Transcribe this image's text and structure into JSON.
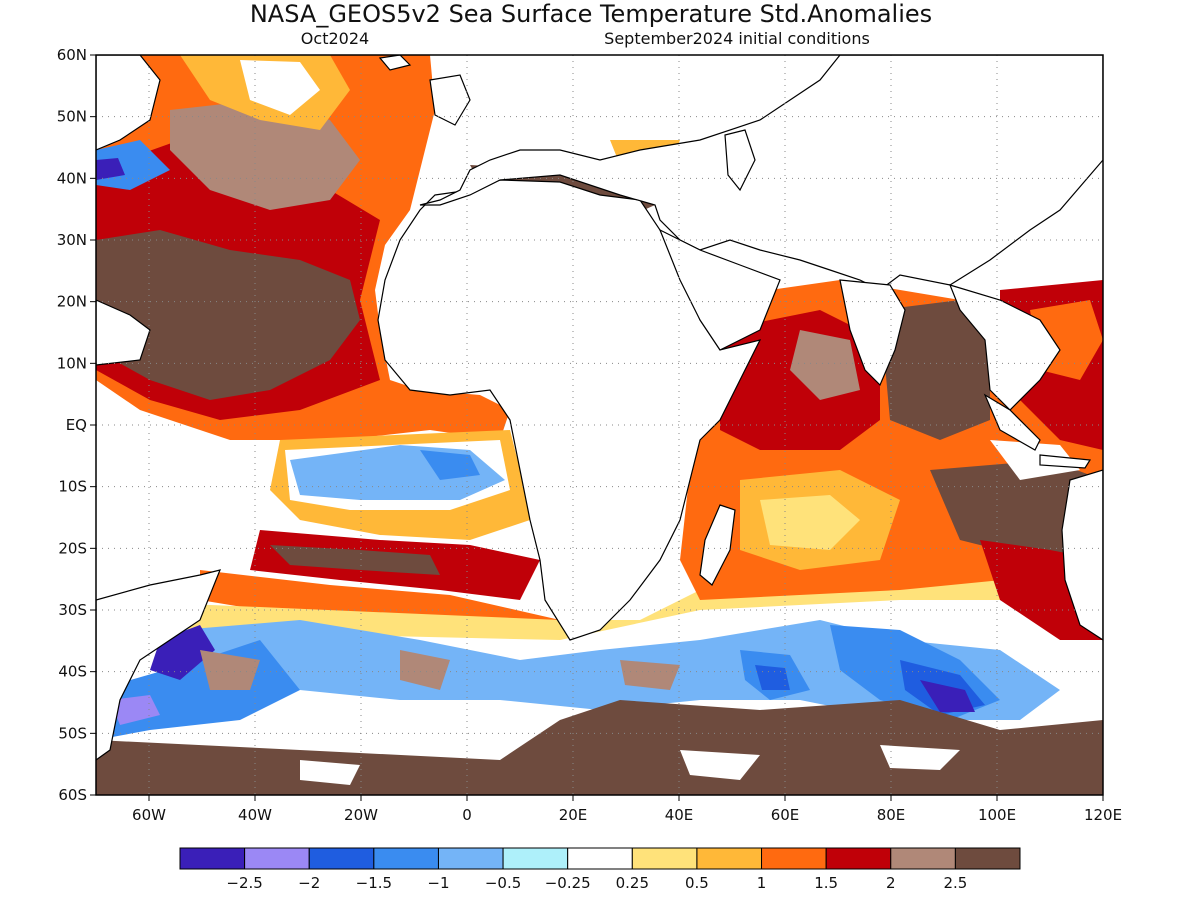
{
  "header": {
    "title": "NASA_GEOS5v2 Sea Surface Temperature Std.Anomalies",
    "valid_month": "Oct2024",
    "initial_conditions": "September2024 initial conditions"
  },
  "map": {
    "lon_range": [
      -70,
      120
    ],
    "lat_range": [
      -60,
      60
    ],
    "lat_ticks": [
      {
        "value": 60,
        "label": "60N"
      },
      {
        "value": 50,
        "label": "50N"
      },
      {
        "value": 40,
        "label": "40N"
      },
      {
        "value": 30,
        "label": "30N"
      },
      {
        "value": 20,
        "label": "20N"
      },
      {
        "value": 10,
        "label": "10N"
      },
      {
        "value": 0,
        "label": "EQ"
      },
      {
        "value": -10,
        "label": "10S"
      },
      {
        "value": -20,
        "label": "20S"
      },
      {
        "value": -30,
        "label": "30S"
      },
      {
        "value": -40,
        "label": "40S"
      },
      {
        "value": -50,
        "label": "50S"
      },
      {
        "value": -60,
        "label": "60S"
      }
    ],
    "lon_ticks": [
      {
        "value": -60,
        "label": "60W"
      },
      {
        "value": -40,
        "label": "40W"
      },
      {
        "value": -20,
        "label": "20W"
      },
      {
        "value": 0,
        "label": "0"
      },
      {
        "value": 20,
        "label": "20E"
      },
      {
        "value": 40,
        "label": "40E"
      },
      {
        "value": 60,
        "label": "60E"
      },
      {
        "value": 80,
        "label": "80E"
      },
      {
        "value": 100,
        "label": "100E"
      },
      {
        "value": 120,
        "label": "120E"
      }
    ],
    "grid": true
  },
  "colorbar": {
    "colors": [
      "#3a1fb8",
      "#9b88f5",
      "#1f5de0",
      "#3a8cf0",
      "#74b4f7",
      "#aef0fa",
      "#ffffff",
      "#ffe27a",
      "#ffb838",
      "#ff6a10",
      "#c00008",
      "#b08878",
      "#6e4b3e"
    ],
    "labels": [
      "-2.5",
      "-2",
      "-1.5",
      "-1",
      "-0.5",
      "-0.25",
      "0.25",
      "0.5",
      "1",
      "1.5",
      "2",
      "2.5"
    ]
  }
}
